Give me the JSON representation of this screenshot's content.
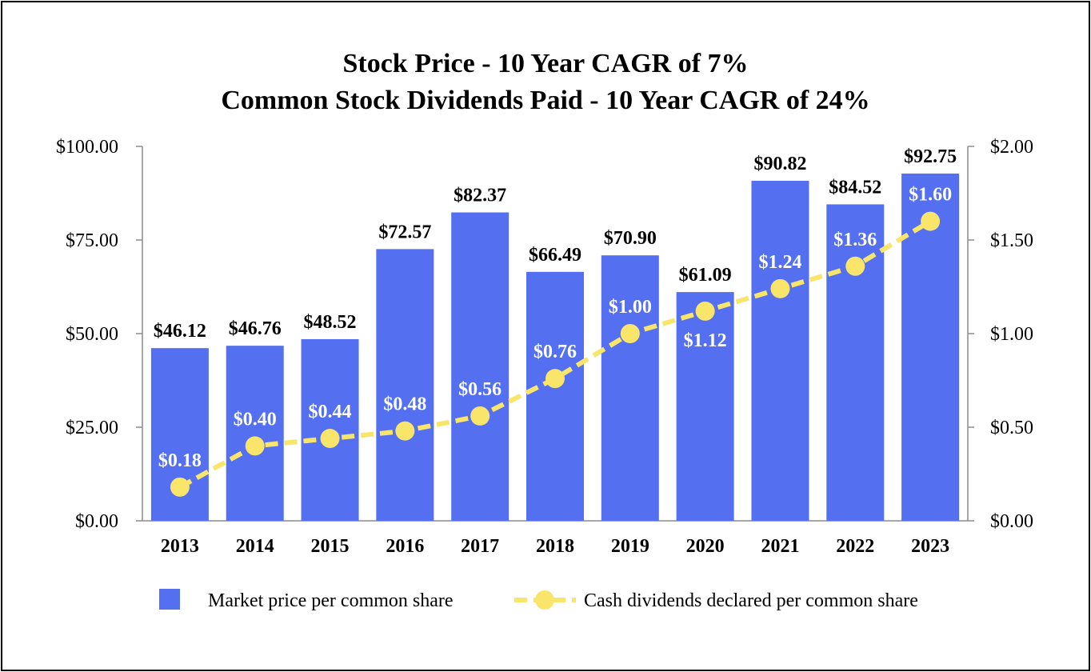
{
  "chart_data": {
    "type": "bar",
    "title": "Stock Price - 10 Year CAGR of 7%",
    "subtitle": "Common Stock Dividends Paid - 10 Year CAGR of 24%",
    "categories": [
      "2013",
      "2014",
      "2015",
      "2016",
      "2017",
      "2018",
      "2019",
      "2020",
      "2021",
      "2022",
      "2023"
    ],
    "series": [
      {
        "name": "Market price per common share",
        "type": "bar",
        "axis": "left",
        "values": [
          46.12,
          46.76,
          48.52,
          72.57,
          82.37,
          66.49,
          70.9,
          61.09,
          90.82,
          84.52,
          92.75
        ],
        "labels": [
          "$46.12",
          "$46.76",
          "$48.52",
          "$72.57",
          "$82.37",
          "$66.49",
          "$70.90",
          "$61.09",
          "$90.82",
          "$84.52",
          "$92.75"
        ],
        "color": "#5470f0"
      },
      {
        "name": "Cash dividends declared per common share",
        "type": "line",
        "axis": "right",
        "values": [
          0.18,
          0.4,
          0.44,
          0.48,
          0.56,
          0.76,
          1.0,
          1.12,
          1.24,
          1.36,
          1.6
        ],
        "labels": [
          "$0.18",
          "$0.40",
          "$0.44",
          "$0.48",
          "$0.56",
          "$0.76",
          "$1.00",
          "$1.12",
          "$1.24",
          "$1.36",
          "$1.60"
        ],
        "label_position": [
          "above",
          "above",
          "above",
          "above",
          "above",
          "above",
          "above",
          "below",
          "above",
          "above",
          "above"
        ],
        "color": "#fae56b"
      }
    ],
    "y_left": {
      "ylim": [
        0,
        100
      ],
      "ticks": [
        0,
        25,
        50,
        75,
        100
      ],
      "tick_labels": [
        "$0.00",
        "$25.00",
        "$50.00",
        "$75.00",
        "$100.00"
      ]
    },
    "y_right": {
      "ylim": [
        0,
        2
      ],
      "ticks": [
        0,
        0.5,
        1.0,
        1.5,
        2.0
      ],
      "tick_labels": [
        "$0.00",
        "$0.50",
        "$1.00",
        "$1.50",
        "$2.00"
      ]
    },
    "xlabel": "",
    "ylabel": "",
    "grid": false,
    "legend_position": "bottom"
  }
}
